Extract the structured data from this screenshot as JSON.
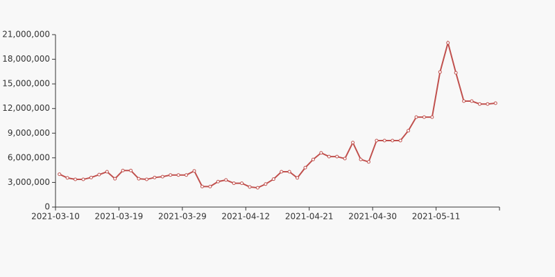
{
  "chart_data": {
    "type": "line",
    "categories": [
      "2021-03-10",
      null,
      null,
      null,
      null,
      null,
      null,
      null,
      "2021-03-19",
      null,
      null,
      null,
      null,
      null,
      null,
      null,
      "2021-03-29",
      null,
      null,
      null,
      null,
      null,
      null,
      null,
      "2021-04-12",
      null,
      null,
      null,
      null,
      null,
      null,
      null,
      "2021-04-21",
      null,
      null,
      null,
      null,
      null,
      null,
      null,
      "2021-04-30",
      null,
      null,
      null,
      null,
      null,
      null,
      null,
      "2021-05-11",
      null,
      null,
      null,
      null,
      null,
      null,
      null
    ],
    "values": [
      4000000,
      3550000,
      3370000,
      3370000,
      3600000,
      3950000,
      4300000,
      3450000,
      4450000,
      4450000,
      3450000,
      3370000,
      3600000,
      3700000,
      3900000,
      3900000,
      3900000,
      4400000,
      2500000,
      2500000,
      3100000,
      3300000,
      2900000,
      2900000,
      2450000,
      2350000,
      2800000,
      3400000,
      4300000,
      4300000,
      3550000,
      4800000,
      5800000,
      6600000,
      6150000,
      6150000,
      5900000,
      7850000,
      5800000,
      5500000,
      8100000,
      8100000,
      8100000,
      8100000,
      9300000,
      10950000,
      10950000,
      10950000,
      16450000,
      20000000,
      16350000,
      12900000,
      12900000,
      12550000,
      12550000,
      12650000
    ],
    "color": "#c0504d",
    "ylim": [
      0,
      21000000
    ],
    "yticks": [
      0,
      {
        "value": 3000000,
        "label": "3,000,000"
      },
      {
        "value": 6000000,
        "label": "6,000,000"
      },
      {
        "value": 9000000,
        "label": "9,000,000"
      },
      {
        "value": 12000000,
        "label": "12,000,000"
      },
      {
        "value": 15000000,
        "label": "15,000,000"
      },
      {
        "value": 18000000,
        "label": "18,000,000"
      },
      {
        "value": 21000000,
        "label": "21,000,000"
      }
    ]
  }
}
